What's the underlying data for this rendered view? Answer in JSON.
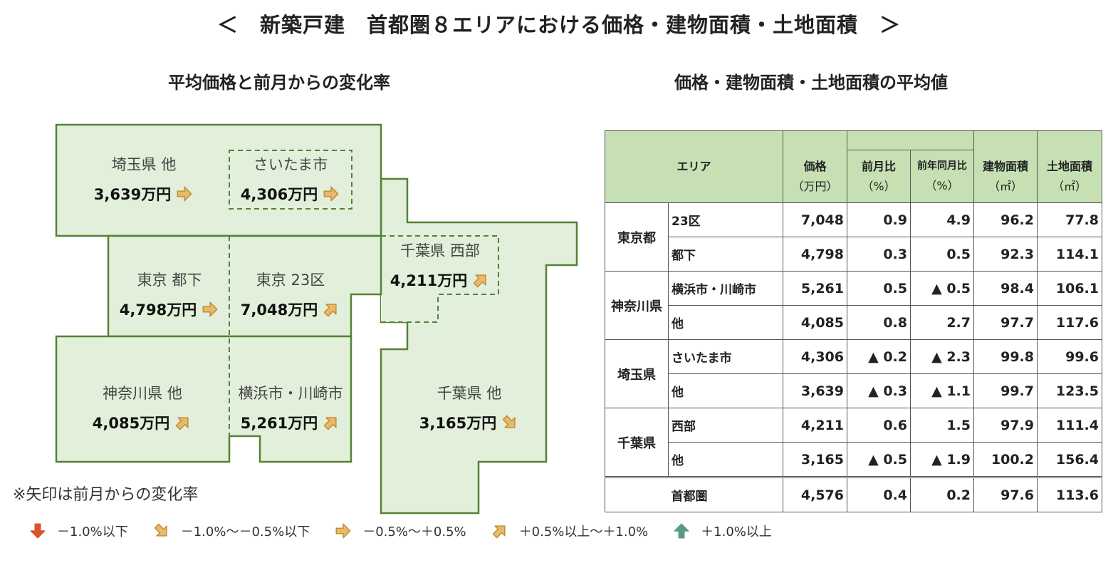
{
  "title": "＜　新築戸建　首都圏８エリアにおける価格・建物面積・土地面積　＞",
  "left_heading": "平均価格と前月からの変化率",
  "right_heading": "価格・建物面積・土地面積の平均値",
  "map": {
    "regions": [
      {
        "name": "埼玉県 他",
        "value": "3,639万円",
        "arrow": "right"
      },
      {
        "name": "さいたま市",
        "value": "4,306万円",
        "arrow": "right"
      },
      {
        "name": "千葉県 西部",
        "value": "4,211万円",
        "arrow": "up-right"
      },
      {
        "name": "東京 都下",
        "value": "4,798万円",
        "arrow": "right"
      },
      {
        "name": "東京 23区",
        "value": "7,048万円",
        "arrow": "up-right"
      },
      {
        "name": "神奈川県 他",
        "value": "4,085万円",
        "arrow": "up-right"
      },
      {
        "name": "横浜市・川崎市",
        "value": "5,261万円",
        "arrow": "up-right"
      },
      {
        "name": "千葉県 他",
        "value": "3,165万円",
        "arrow": "down-right"
      }
    ],
    "fill_color": "#e2efda",
    "border_color": "#548235"
  },
  "note": "※矢印は前月からの変化率",
  "legend": [
    {
      "arrow": "down",
      "label": "－1.0%以下",
      "color": "#d9542b"
    },
    {
      "arrow": "down-right",
      "label": "－1.0%～－0.5%以下",
      "color": "#e8b96a"
    },
    {
      "arrow": "right",
      "label": "－0.5%～＋0.5%",
      "color": "#e8b96a"
    },
    {
      "arrow": "up-right",
      "label": "＋0.5%以上～＋1.0%",
      "color": "#e8b96a"
    },
    {
      "arrow": "up",
      "label": "＋1.0%以上",
      "color": "#5a9a82"
    }
  ],
  "table": {
    "header": {
      "area": "エリア",
      "price": "価格",
      "price_unit": "（万円）",
      "mom": "前月比",
      "mom_unit": "（%）",
      "yoy": "前年同月比",
      "yoy_unit": "（%）",
      "building": "建物面積",
      "building_unit": "（㎡）",
      "land": "土地面積",
      "land_unit": "（㎡）"
    },
    "groups": [
      {
        "pref": "東京都",
        "rows": [
          {
            "area": "23区",
            "price": "7,048",
            "mom": "0.9",
            "yoy": "4.9",
            "building": "96.2",
            "land": "77.8"
          },
          {
            "area": "都下",
            "price": "4,798",
            "mom": "0.3",
            "yoy": "0.5",
            "building": "92.3",
            "land": "114.1"
          }
        ]
      },
      {
        "pref": "神奈川県",
        "rows": [
          {
            "area": "横浜市・川崎市",
            "price": "5,261",
            "mom": "0.5",
            "yoy": "▲ 0.5",
            "building": "98.4",
            "land": "106.1"
          },
          {
            "area": "他",
            "price": "4,085",
            "mom": "0.8",
            "yoy": "2.7",
            "building": "97.7",
            "land": "117.6"
          }
        ]
      },
      {
        "pref": "埼玉県",
        "rows": [
          {
            "area": "さいたま市",
            "price": "4,306",
            "mom": "▲ 0.2",
            "yoy": "▲ 2.3",
            "building": "99.8",
            "land": "99.6"
          },
          {
            "area": "他",
            "price": "3,639",
            "mom": "▲ 0.3",
            "yoy": "▲ 1.1",
            "building": "99.7",
            "land": "123.5"
          }
        ]
      },
      {
        "pref": "千葉県",
        "rows": [
          {
            "area": "西部",
            "price": "4,211",
            "mom": "0.6",
            "yoy": "1.5",
            "building": "97.9",
            "land": "111.4"
          },
          {
            "area": "他",
            "price": "3,165",
            "mom": "▲ 0.5",
            "yoy": "▲ 1.9",
            "building": "100.2",
            "land": "156.4"
          }
        ]
      }
    ],
    "total": {
      "area": "首都圏",
      "price": "4,576",
      "mom": "0.4",
      "yoy": "0.2",
      "building": "97.6",
      "land": "113.6"
    }
  }
}
